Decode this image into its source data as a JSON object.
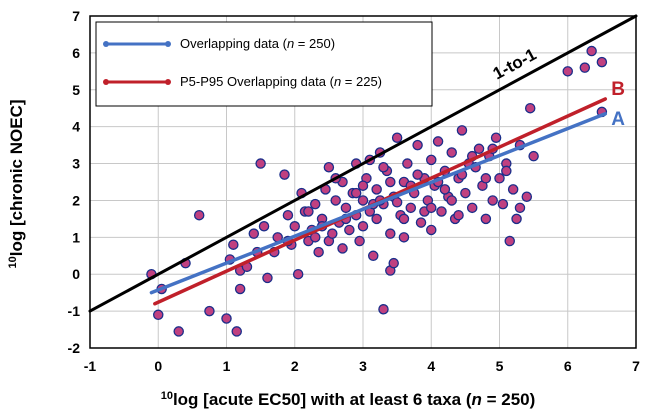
{
  "chart_data": {
    "type": "scatter",
    "xlim": [
      -1,
      7
    ],
    "ylim": [
      -2,
      7
    ],
    "xticks": [
      "-1",
      "0",
      "1",
      "2",
      "3",
      "4",
      "5",
      "6",
      "7"
    ],
    "yticks": [
      "-2",
      "-1",
      "0",
      "1",
      "2",
      "3",
      "4",
      "5",
      "6",
      "7"
    ],
    "xlabel": {
      "sup": "10",
      "pre": "log [acute EC50] with at least 6 taxa (",
      "n": "n",
      "post": " = 250)"
    },
    "ylabel": {
      "sup": "10",
      "main": "log [chronic NOEC]"
    },
    "grid": true,
    "legend_position": "top-left",
    "legend": [
      {
        "pre": "Overlapping data (",
        "n": "n",
        "post": " = 250)",
        "color": "#4472C4"
      },
      {
        "pre": "P5-P95 Overlapping data (",
        "n": "n",
        "post": " = 225)",
        "color": "#C0202A"
      }
    ],
    "lines": [
      {
        "label": "1-to-1",
        "color": "#000000",
        "x": [
          -1,
          7
        ],
        "y": [
          -1,
          7
        ]
      },
      {
        "label": "B",
        "color": "#C0202A",
        "x": [
          -0.05,
          6.55
        ],
        "y": [
          -0.8,
          4.75
        ]
      },
      {
        "label": "A",
        "color": "#4472C4",
        "x": [
          -0.1,
          6.55
        ],
        "y": [
          -0.5,
          4.35
        ]
      }
    ],
    "point_style": {
      "fill": "#C04080",
      "stroke": "#1A2E8A"
    },
    "points": [
      [
        -0.1,
        0.0
      ],
      [
        0.0,
        -1.1
      ],
      [
        0.05,
        -0.4
      ],
      [
        0.3,
        -1.55
      ],
      [
        0.4,
        0.3
      ],
      [
        0.6,
        1.6
      ],
      [
        0.75,
        -1.0
      ],
      [
        1.0,
        -1.2
      ],
      [
        1.05,
        0.4
      ],
      [
        1.15,
        -1.55
      ],
      [
        1.1,
        0.8
      ],
      [
        1.2,
        0.1
      ],
      [
        1.2,
        -0.4
      ],
      [
        1.3,
        0.2
      ],
      [
        1.4,
        1.1
      ],
      [
        1.5,
        3.0
      ],
      [
        1.45,
        0.6
      ],
      [
        1.55,
        1.3
      ],
      [
        1.6,
        -0.1
      ],
      [
        1.7,
        0.6
      ],
      [
        1.75,
        1.0
      ],
      [
        1.85,
        2.7
      ],
      [
        1.9,
        1.6
      ],
      [
        1.95,
        0.8
      ],
      [
        2.0,
        1.3
      ],
      [
        2.05,
        0.0
      ],
      [
        2.1,
        2.2
      ],
      [
        2.15,
        1.7
      ],
      [
        2.2,
        0.9
      ],
      [
        2.25,
        1.2
      ],
      [
        2.3,
        1.9
      ],
      [
        2.35,
        0.6
      ],
      [
        2.4,
        1.5
      ],
      [
        2.45,
        2.3
      ],
      [
        2.5,
        0.9
      ],
      [
        2.5,
        2.9
      ],
      [
        2.55,
        1.1
      ],
      [
        2.6,
        2.0
      ],
      [
        2.65,
        1.4
      ],
      [
        2.7,
        0.7
      ],
      [
        2.7,
        2.5
      ],
      [
        2.75,
        1.8
      ],
      [
        2.8,
        1.2
      ],
      [
        2.85,
        2.2
      ],
      [
        2.9,
        1.6
      ],
      [
        2.9,
        3.0
      ],
      [
        2.95,
        0.9
      ],
      [
        3.0,
        2.0
      ],
      [
        3.0,
        1.3
      ],
      [
        3.05,
        2.6
      ],
      [
        3.1,
        1.7
      ],
      [
        3.1,
        3.1
      ],
      [
        3.15,
        0.5
      ],
      [
        3.2,
        2.3
      ],
      [
        3.2,
        1.5
      ],
      [
        3.25,
        3.3
      ],
      [
        3.3,
        1.9
      ],
      [
        3.3,
        -0.95
      ],
      [
        3.35,
        2.8
      ],
      [
        3.4,
        1.1
      ],
      [
        3.4,
        0.1
      ],
      [
        3.45,
        0.3
      ],
      [
        3.45,
        2.1
      ],
      [
        3.5,
        3.7
      ],
      [
        3.55,
        1.6
      ],
      [
        3.6,
        2.5
      ],
      [
        3.6,
        1.0
      ],
      [
        3.65,
        3.0
      ],
      [
        3.7,
        1.8
      ],
      [
        3.75,
        2.2
      ],
      [
        3.8,
        3.5
      ],
      [
        3.85,
        1.4
      ],
      [
        3.9,
        2.6
      ],
      [
        3.95,
        2.0
      ],
      [
        4.0,
        3.1
      ],
      [
        4.0,
        1.2
      ],
      [
        4.05,
        2.4
      ],
      [
        4.1,
        3.6
      ],
      [
        4.15,
        1.7
      ],
      [
        4.2,
        2.8
      ],
      [
        4.25,
        2.1
      ],
      [
        4.3,
        3.3
      ],
      [
        4.35,
        1.5
      ],
      [
        4.4,
        2.6
      ],
      [
        4.45,
        3.9
      ],
      [
        4.5,
        2.2
      ],
      [
        4.55,
        3.0
      ],
      [
        4.6,
        1.8
      ],
      [
        4.65,
        2.9
      ],
      [
        4.7,
        3.4
      ],
      [
        4.75,
        2.4
      ],
      [
        4.8,
        1.5
      ],
      [
        4.85,
        3.2
      ],
      [
        4.9,
        2.0
      ],
      [
        4.95,
        3.7
      ],
      [
        5.0,
        2.6
      ],
      [
        5.05,
        1.9
      ],
      [
        5.1,
        3.0
      ],
      [
        5.15,
        0.9
      ],
      [
        5.2,
        2.3
      ],
      [
        5.25,
        1.5
      ],
      [
        5.3,
        3.5
      ],
      [
        5.4,
        2.1
      ],
      [
        5.45,
        4.5
      ],
      [
        5.5,
        3.2
      ],
      [
        6.0,
        5.5
      ],
      [
        6.25,
        5.6
      ],
      [
        6.35,
        6.05
      ],
      [
        6.5,
        5.75
      ],
      [
        6.5,
        4.4
      ],
      [
        2.2,
        1.7
      ],
      [
        2.6,
        2.6
      ],
      [
        3.0,
        2.4
      ],
      [
        3.4,
        2.5
      ],
      [
        3.8,
        2.7
      ],
      [
        4.2,
        2.3
      ],
      [
        4.6,
        3.2
      ],
      [
        3.5,
        1.95
      ],
      [
        3.9,
        1.7
      ],
      [
        4.3,
        2.0
      ],
      [
        2.9,
        2.2
      ],
      [
        3.15,
        1.9
      ],
      [
        3.7,
        2.4
      ],
      [
        4.1,
        2.5
      ],
      [
        4.45,
        2.7
      ],
      [
        4.8,
        2.6
      ],
      [
        2.4,
        1.3
      ],
      [
        2.75,
        1.5
      ],
      [
        3.25,
        2.0
      ],
      [
        3.6,
        1.5
      ],
      [
        4.0,
        1.8
      ],
      [
        4.4,
        1.6
      ],
      [
        5.1,
        2.8
      ],
      [
        5.3,
        1.8
      ],
      [
        4.9,
        3.4
      ],
      [
        3.3,
        2.9
      ],
      [
        2.3,
        1.0
      ],
      [
        1.9,
        0.9
      ]
    ]
  }
}
